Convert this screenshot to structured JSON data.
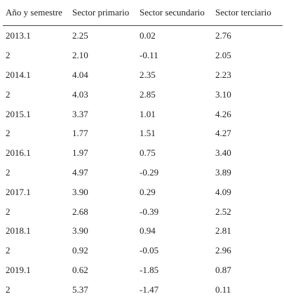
{
  "table": {
    "headers": [
      "Año y semestre",
      "Sector primario",
      "Sector secundario",
      "Sector terciario"
    ],
    "rows": [
      [
        "2013.1",
        "2.25",
        "0.02",
        "2.76"
      ],
      [
        "2",
        "2.10",
        "-0.11",
        "2.05"
      ],
      [
        "2014.1",
        "4.04",
        "2.35",
        "2.23"
      ],
      [
        "2",
        "4.03",
        "2.85",
        "3.10"
      ],
      [
        "2015.1",
        "3.37",
        "1.01",
        "4.26"
      ],
      [
        "2",
        "1.77",
        "1.51",
        "4.27"
      ],
      [
        "2016.1",
        "1.97",
        "0.75",
        "3.40"
      ],
      [
        "2",
        "4.97",
        "-0.29",
        "3.89"
      ],
      [
        "2017.1",
        "3.90",
        "0.29",
        "4.09"
      ],
      [
        "2",
        "2.68",
        "-0.39",
        "2.52"
      ],
      [
        "2018.1",
        "3.90",
        "0.94",
        "2.81"
      ],
      [
        "2",
        "0.92",
        "-0.05",
        "2.96"
      ],
      [
        "2019.1",
        "0.62",
        "-1.85",
        "0.87"
      ],
      [
        "2",
        "5.37",
        "-1.47",
        "0.11"
      ]
    ]
  }
}
